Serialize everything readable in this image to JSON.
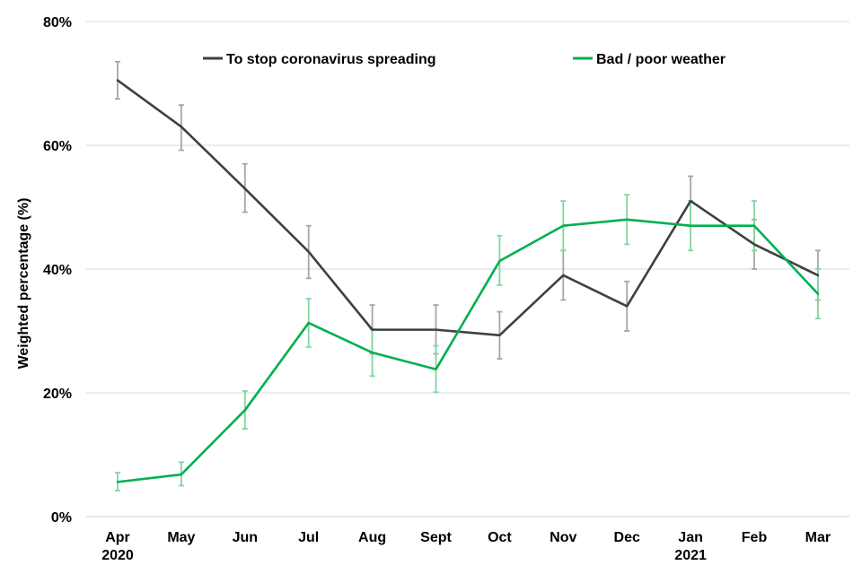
{
  "chart_data": {
    "type": "line",
    "title": "",
    "xlabel": "",
    "ylabel": "Weighted percentage (%)",
    "x": [
      "Apr",
      "May",
      "Jun",
      "Jul",
      "Aug",
      "Sept",
      "Oct",
      "Nov",
      "Dec",
      "Jan",
      "Feb",
      "Mar"
    ],
    "x_sublabels": [
      "2020",
      "",
      "",
      "",
      "",
      "",
      "",
      "",
      "",
      "2021",
      "",
      ""
    ],
    "ylim": [
      0,
      80
    ],
    "yticks": [
      0,
      20,
      40,
      60,
      80
    ],
    "ytick_labels": [
      "0%",
      "20%",
      "40%",
      "60%",
      "80%"
    ],
    "grid": "horizontal",
    "legend_position": "top",
    "series": [
      {
        "name": "To stop coronavirus spreading",
        "color": "#404040",
        "errorbar_color": "#a6a6a6",
        "values": [
          70.5,
          63,
          53,
          42.8,
          30.2,
          30.2,
          29.3,
          39,
          34,
          51,
          44,
          39
        ],
        "lower": [
          67.5,
          59.2,
          49.2,
          38.5,
          26.3,
          26.3,
          25.5,
          35,
          30,
          47,
          40,
          35
        ],
        "upper": [
          73.5,
          66.5,
          57,
          47,
          34.2,
          34.2,
          33.1,
          43,
          38,
          55,
          48,
          43
        ]
      },
      {
        "name": "Bad / poor weather",
        "color": "#00b050",
        "errorbar_color": "#7fd6a1",
        "values": [
          5.6,
          6.8,
          17.2,
          31.3,
          26.5,
          23.8,
          41.3,
          47,
          48,
          47,
          47,
          36
        ],
        "lower": [
          4.2,
          5,
          14.2,
          27.4,
          22.7,
          20.1,
          37.4,
          43,
          44,
          43,
          43,
          32
        ],
        "upper": [
          7.1,
          8.8,
          20.3,
          35.2,
          30.3,
          27.6,
          45.4,
          51,
          52,
          51,
          51,
          40
        ]
      }
    ]
  }
}
